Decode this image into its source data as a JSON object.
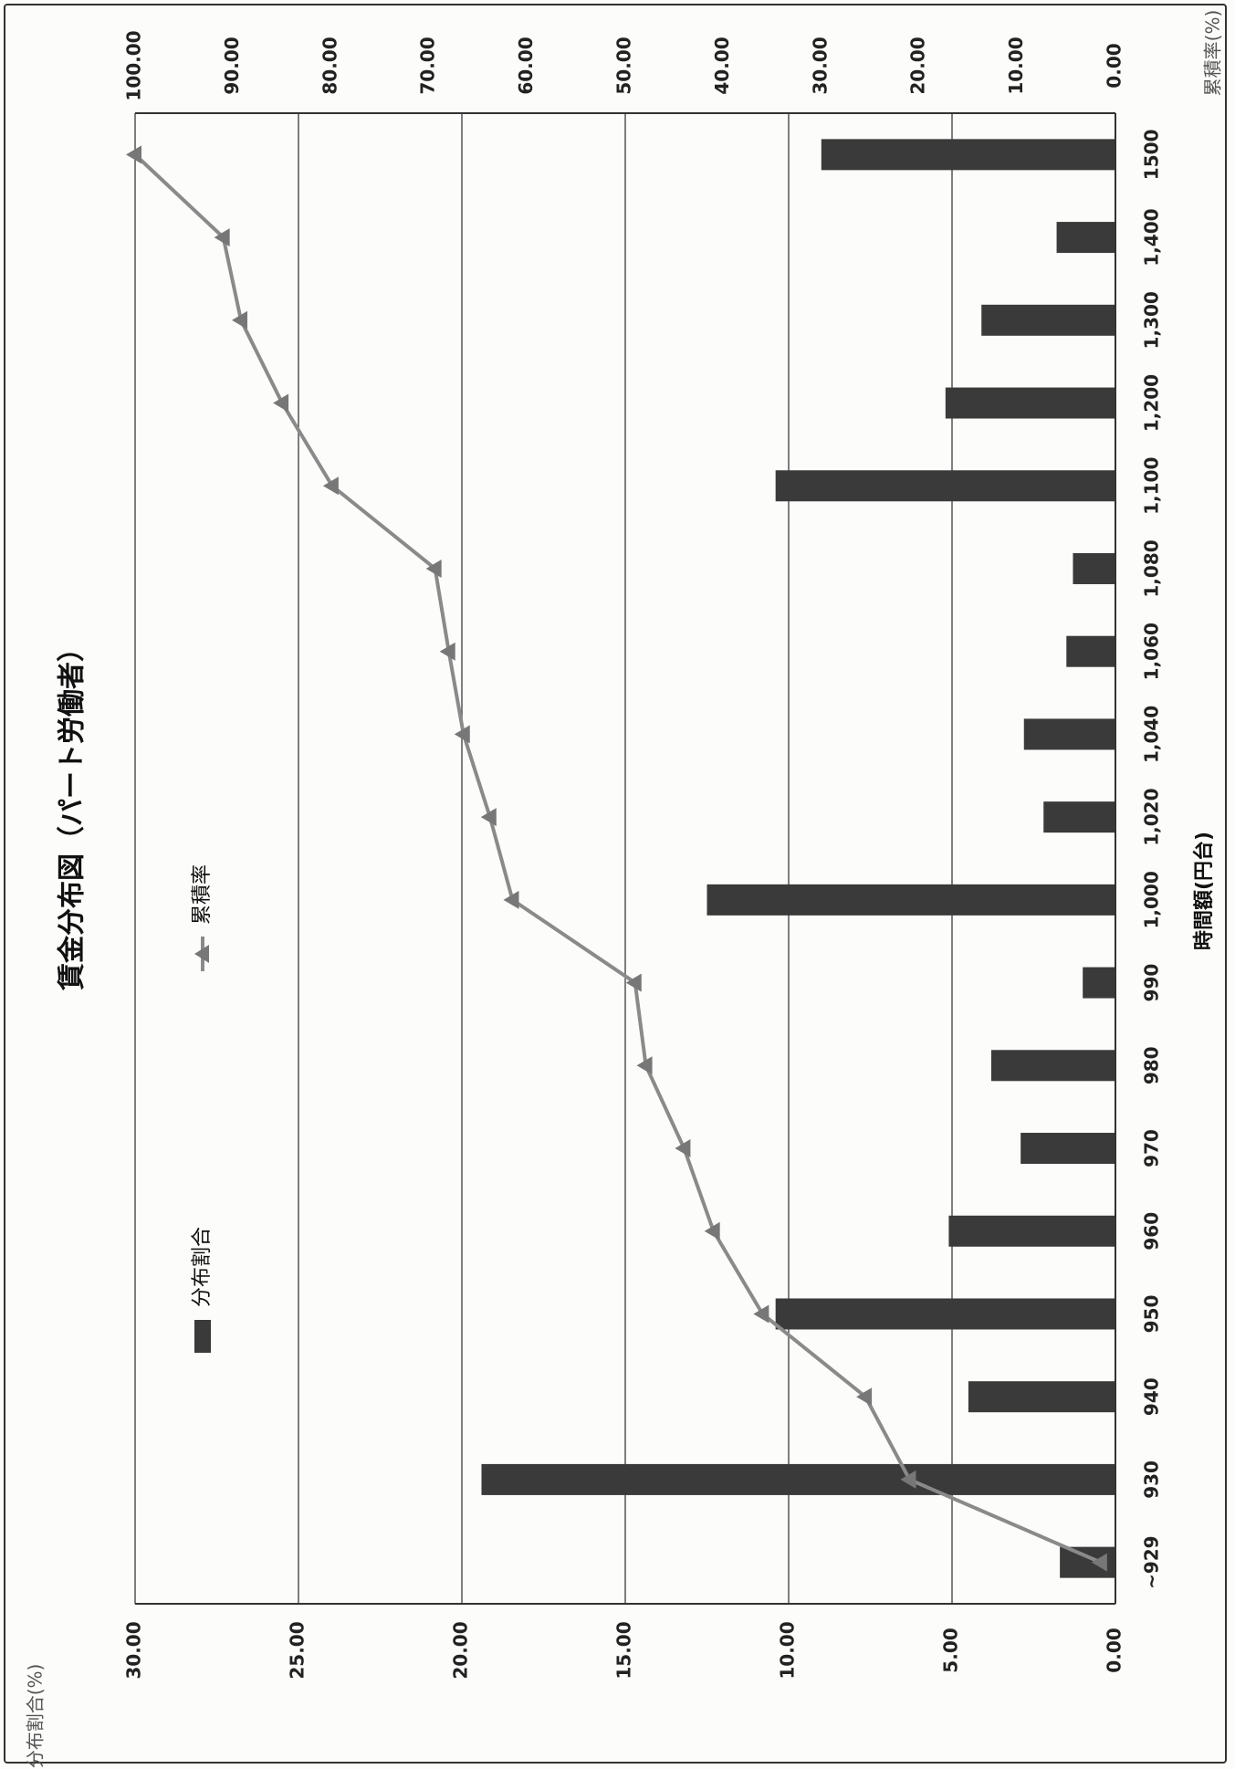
{
  "chart_data": {
    "type": "bar+line",
    "title": "賃金分布図（パート労働者）",
    "xlabel": "時間額(円台)",
    "categories": [
      "~929",
      "930",
      "940",
      "950",
      "960",
      "970",
      "980",
      "990",
      "1,000",
      "1,020",
      "1,040",
      "1,060",
      "1,080",
      "1,100",
      "1,200",
      "1,300",
      "1,400",
      "1500"
    ],
    "y_left_label": "分布割合(%)",
    "y_left_ticks": [
      "0.00",
      "5.00",
      "10.00",
      "15.00",
      "20.00",
      "25.00",
      "30.00"
    ],
    "y_left_range": [
      0,
      30
    ],
    "y_right_label": "累積率(%)",
    "y_right_ticks": [
      "0.00",
      "10.00",
      "20.00",
      "30.00",
      "40.00",
      "50.00",
      "60.00",
      "70.00",
      "80.00",
      "90.00",
      "100.00"
    ],
    "y_right_range": [
      0,
      100
    ],
    "grid": true,
    "orientation": "rotated 90° counter-clockwise",
    "series": [
      {
        "name": "分布割合",
        "type": "bar",
        "axis": "left",
        "color": "#3a3a3a",
        "values": [
          1.7,
          19.4,
          4.5,
          10.4,
          5.1,
          2.9,
          3.8,
          1.0,
          12.5,
          2.2,
          2.8,
          1.5,
          1.3,
          10.4,
          5.2,
          4.1,
          1.8,
          9.0
        ]
      },
      {
        "name": "累積率",
        "type": "line",
        "axis": "right",
        "color": "#8a8a8a",
        "marker": "triangle",
        "values": [
          1.5,
          21.0,
          25.5,
          36.0,
          41.0,
          44.0,
          47.9,
          49.0,
          61.5,
          63.8,
          66.5,
          68.0,
          69.4,
          79.9,
          85.0,
          89.2,
          91.0,
          100.0
        ]
      }
    ]
  }
}
